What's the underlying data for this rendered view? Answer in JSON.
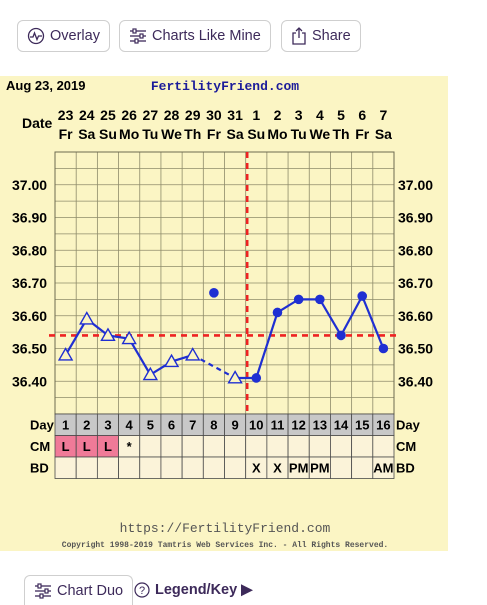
{
  "toolbar": {
    "overlay_label": "Overlay",
    "charts_like_mine_label": "Charts Like Mine",
    "share_label": "Share"
  },
  "footer_controls": {
    "chart_duo_label": "Chart Duo",
    "legend_key_label": "Legend/Key ▶"
  },
  "chart_data": {
    "type": "line",
    "title": "FertilityFriend.com",
    "date_label": "Aug 23, 2019",
    "source_url": "https://FertilityFriend.com",
    "copyright": "Copyright 1998-2019 Tamtris Web Services Inc. - All Rights Reserved.",
    "xlabel": "Date",
    "day_numbers": [
      "23",
      "24",
      "25",
      "26",
      "27",
      "28",
      "29",
      "30",
      "31",
      "1",
      "2",
      "3",
      "4",
      "5",
      "6",
      "7"
    ],
    "weekdays": [
      "Fr",
      "Sa",
      "Su",
      "Mo",
      "Tu",
      "We",
      "Th",
      "Fr",
      "Sa",
      "Su",
      "Mo",
      "Tu",
      "We",
      "Th",
      "Fr",
      "Sa"
    ],
    "cycle_days": [
      "1",
      "2",
      "3",
      "4",
      "5",
      "6",
      "7",
      "8",
      "9",
      "10",
      "11",
      "12",
      "13",
      "14",
      "15",
      "16"
    ],
    "ylim": [
      36.3,
      37.1
    ],
    "y_ticks": [
      37.0,
      36.9,
      36.8,
      36.7,
      36.6,
      36.5,
      36.4
    ],
    "y_tick_labels": [
      "37.00",
      "36.90",
      "36.80",
      "36.70",
      "36.60",
      "36.50",
      "36.40"
    ],
    "temps": [
      36.48,
      36.59,
      36.54,
      36.53,
      36.42,
      36.46,
      36.48,
      36.67,
      36.41,
      36.41,
      36.61,
      36.65,
      36.65,
      36.54,
      36.66,
      36.5
    ],
    "markers": [
      "open-triangle",
      "open-triangle",
      "open-triangle",
      "open-triangle",
      "open-triangle",
      "open-triangle",
      "open-triangle",
      "filled-circle",
      "open-triangle",
      "filled-circle",
      "filled-circle",
      "filled-circle",
      "filled-circle",
      "filled-circle",
      "filled-circle",
      "filled-circle"
    ],
    "connections": [
      "solid",
      "solid",
      "solid",
      "solid",
      "solid",
      "solid",
      "dashed",
      "none",
      "solid",
      "solid",
      "solid",
      "solid",
      "solid",
      "solid",
      "solid"
    ],
    "coverline": 36.54,
    "ovulation_day": "10",
    "row_labels": {
      "day": "Day",
      "cm": "CM",
      "bd": "BD"
    },
    "cm": [
      "L",
      "L",
      "L",
      "*",
      "",
      "",
      "",
      "",
      "",
      "",
      "",
      "",
      "",
      "",
      "",
      ""
    ],
    "bd": [
      "",
      "",
      "",
      "",
      "",
      "",
      "",
      "",
      "",
      "X",
      "X",
      "PM",
      "PM",
      "",
      "",
      "AM"
    ],
    "colors": {
      "background": "#fbf5c4",
      "grid": "#8e8b6a",
      "line": "#1f2fd2",
      "coverline": "#ee2222",
      "cm_fill": "#f07a98",
      "text": "#000000",
      "title": "#1b1b9a"
    }
  }
}
